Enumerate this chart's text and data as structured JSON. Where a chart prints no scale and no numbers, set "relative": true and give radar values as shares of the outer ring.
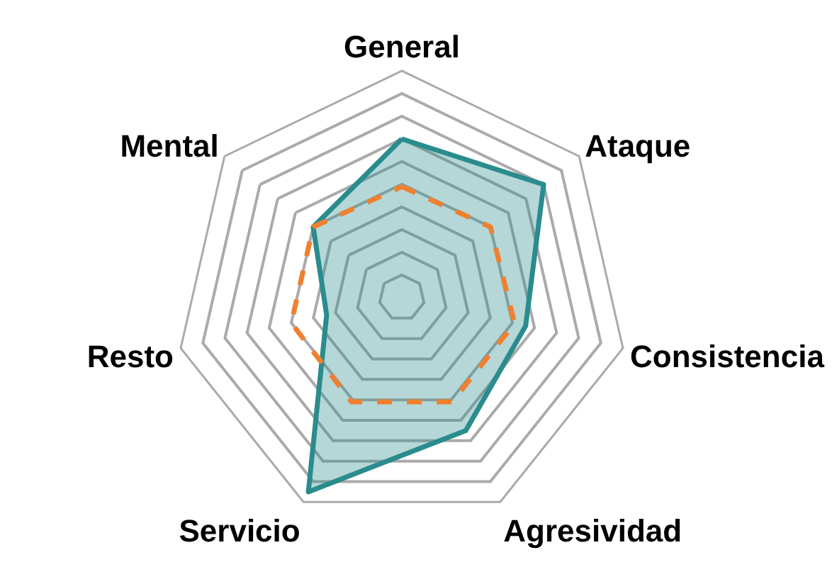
{
  "chart_data": {
    "type": "radar",
    "relative": true,
    "categories": [
      "General",
      "Ataque",
      "Consistencia",
      "Agresividad",
      "Servicio",
      "Resto",
      "Mental"
    ],
    "series": [
      {
        "color": "#2a8c8c",
        "values": [
          0.7,
          0.8,
          0.56,
          0.65,
          0.95,
          0.34,
          0.5
        ],
        "line_style": "solid"
      },
      {
        "color": "#f08030",
        "values": [
          0.49,
          0.5,
          0.51,
          0.51,
          0.51,
          0.5,
          0.5
        ],
        "line_style": "dashed"
      }
    ]
  }
}
